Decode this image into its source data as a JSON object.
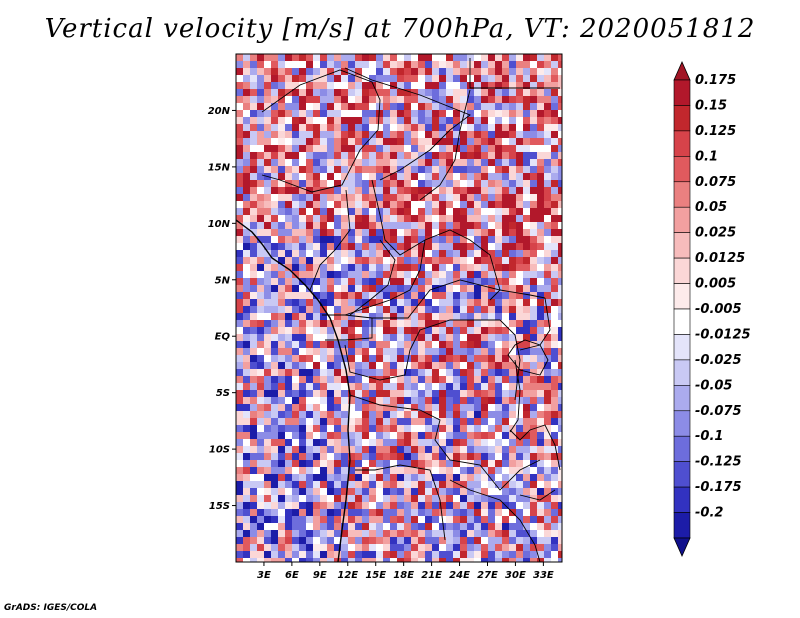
{
  "title": "Vertical velocity [m/s] at 700hPa, VT: 2020051812",
  "footer": "GrADS: IGES/COLA",
  "map": {
    "lon_range": [
      0,
      35
    ],
    "lat_range": [
      -20,
      25
    ],
    "lat_labels": [
      {
        "lat": 20,
        "label": "20N"
      },
      {
        "lat": 15,
        "label": "15N"
      },
      {
        "lat": 10,
        "label": "10N"
      },
      {
        "lat": 5,
        "label": "5N"
      },
      {
        "lat": 0,
        "label": "EQ"
      },
      {
        "lat": -5,
        "label": "5S"
      },
      {
        "lat": -10,
        "label": "10S"
      },
      {
        "lat": -15,
        "label": "15S"
      }
    ],
    "lon_labels": [
      {
        "lon": 3,
        "label": "3E"
      },
      {
        "lon": 6,
        "label": "6E"
      },
      {
        "lon": 9,
        "label": "9E"
      },
      {
        "lon": 12,
        "label": "12E"
      },
      {
        "lon": 15,
        "label": "15E"
      },
      {
        "lon": 18,
        "label": "18E"
      },
      {
        "lon": 21,
        "label": "21E"
      },
      {
        "lon": 24,
        "label": "24E"
      },
      {
        "lon": 27,
        "label": "27E"
      },
      {
        "lon": 30,
        "label": "30E"
      },
      {
        "lon": 33,
        "label": "33E"
      }
    ]
  },
  "colorbar": {
    "levels": [
      {
        "label": "0.175",
        "color": "#b2182b"
      },
      {
        "label": "0.15",
        "color": "#c1272d"
      },
      {
        "label": "0.125",
        "color": "#d6434a"
      },
      {
        "label": "0.1",
        "color": "#e05a5e"
      },
      {
        "label": "0.075",
        "color": "#ea8080"
      },
      {
        "label": "0.05",
        "color": "#f2a0a0"
      },
      {
        "label": "0.025",
        "color": "#f7bcbc"
      },
      {
        "label": "0.0125",
        "color": "#fbd7d7"
      },
      {
        "label": "0.005",
        "color": "#fdebeb"
      },
      {
        "label": "-0.005",
        "color": "#ffffff"
      },
      {
        "label": "-0.0125",
        "color": "#e4e4fa"
      },
      {
        "label": "-0.025",
        "color": "#c9c9f4"
      },
      {
        "label": "-0.05",
        "color": "#ababee"
      },
      {
        "label": "-0.075",
        "color": "#8c8ce6"
      },
      {
        "label": "-0.1",
        "color": "#6d6ddc"
      },
      {
        "label": "-0.125",
        "color": "#4f4fd0"
      },
      {
        "label": "-0.175",
        "color": "#3232c0"
      },
      {
        "label": "-0.2",
        "color": "#1c1ca8"
      }
    ],
    "top_color": "#a11525",
    "bottom_color": "#10108c"
  }
}
